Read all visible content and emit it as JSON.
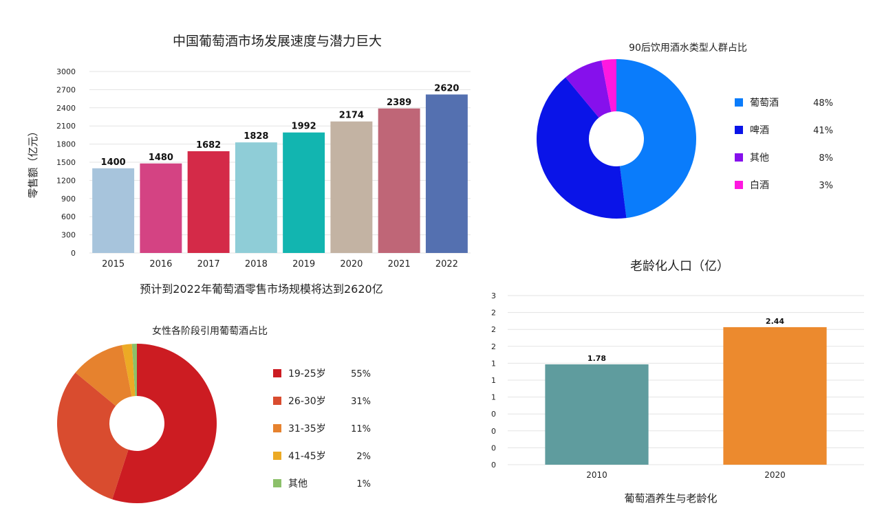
{
  "chart_data": [
    {
      "id": "retail",
      "type": "bar",
      "title": "中国葡萄酒市场发展速度与潜力巨大",
      "xlabel": "预计到2022年葡萄酒零售市场规模将达到2620亿",
      "ylabel": "零售额（亿元）",
      "ylim": [
        0,
        3000
      ],
      "yticks": [
        "0",
        "300",
        "600",
        "900",
        "1200",
        "1500",
        "1800",
        "2100",
        "2400",
        "2700",
        "3000"
      ],
      "grid": true,
      "categories": [
        "2015",
        "2016",
        "2017",
        "2018",
        "2019",
        "2020",
        "2021",
        "2022"
      ],
      "values": [
        1400,
        1480,
        1682,
        1828,
        1992,
        2174,
        2389,
        2620
      ],
      "value_labels": [
        "1400",
        "1480",
        "1682",
        "1828",
        "1992",
        "2174",
        "2389",
        "2620"
      ],
      "colors": [
        "#a7c4dc",
        "#d44383",
        "#d42a48",
        "#8fcdd7",
        "#12b5b0",
        "#c3b3a3",
        "#bf6677",
        "#5470b0"
      ]
    },
    {
      "id": "post90",
      "type": "pie",
      "title": "90后饮用酒水类型人群占比",
      "legend": "right",
      "slices": [
        {
          "label": "葡萄酒",
          "value": 48,
          "pct": "48%",
          "color": "#0a7cfb"
        },
        {
          "label": "啤酒",
          "value": 41,
          "pct": "41%",
          "color": "#0a14e8"
        },
        {
          "label": "其他",
          "value": 8,
          "pct": "8%",
          "color": "#8610ec"
        },
        {
          "label": "白酒",
          "value": 3,
          "pct": "3%",
          "color": "#ff18e0"
        }
      ]
    },
    {
      "id": "women",
      "type": "pie",
      "title": "女性各阶段引用葡萄酒占比",
      "legend": "right",
      "slices": [
        {
          "label": "19-25岁",
          "value": 55,
          "pct": "55%",
          "color": "#cc1c22"
        },
        {
          "label": "26-30岁",
          "value": 31,
          "pct": "31%",
          "color": "#d94c2f"
        },
        {
          "label": "31-35岁",
          "value": 11,
          "pct": "11%",
          "color": "#e6822e"
        },
        {
          "label": "41-45岁",
          "value": 2,
          "pct": "2%",
          "color": "#ecaa25"
        },
        {
          "label": "其他",
          "value": 1,
          "pct": "1%",
          "color": "#8cc06a"
        }
      ]
    },
    {
      "id": "aging",
      "type": "bar",
      "title": "老龄化人口（亿）",
      "xlabel": "葡萄酒养生与老龄化",
      "ylabel": "",
      "ylim": [
        0,
        3
      ],
      "yticks": [
        "0",
        "0",
        "0",
        "0",
        "1",
        "1",
        "1",
        "2",
        "2",
        "2",
        "3"
      ],
      "grid": true,
      "categories": [
        "2010",
        "2020"
      ],
      "values": [
        1.78,
        2.44
      ],
      "value_labels": [
        "1.78",
        "2.44"
      ],
      "colors": [
        "#5f9c9e",
        "#ec8a2e"
      ]
    }
  ]
}
